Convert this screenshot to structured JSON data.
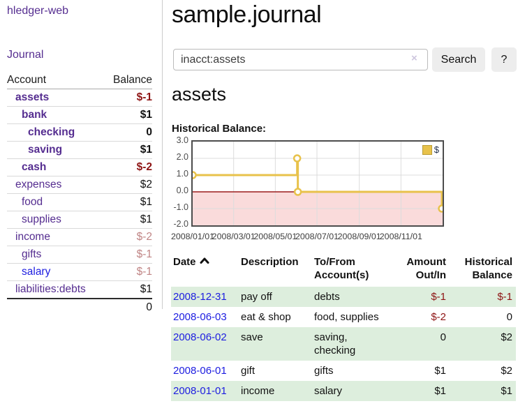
{
  "app": {
    "brand": "hledger-web",
    "nav": {
      "journal": "Journal"
    }
  },
  "sidebar": {
    "columns": {
      "account": "Account",
      "balance": "Balance"
    },
    "accounts": [
      {
        "name": "assets",
        "balance": "$-1",
        "indent": 1,
        "bold": true,
        "tone": "neg",
        "link": "purple"
      },
      {
        "name": "bank",
        "balance": "$1",
        "indent": 2,
        "bold": true,
        "tone": "normal",
        "link": "purple"
      },
      {
        "name": "checking",
        "balance": "0",
        "indent": 3,
        "bold": true,
        "tone": "normal",
        "link": "purple"
      },
      {
        "name": "saving",
        "balance": "$1",
        "indent": 3,
        "bold": true,
        "tone": "normal",
        "link": "purple"
      },
      {
        "name": "cash",
        "balance": "$-2",
        "indent": 2,
        "bold": true,
        "tone": "neg",
        "link": "purple"
      },
      {
        "name": "expenses",
        "balance": "$2",
        "indent": 1,
        "bold": false,
        "tone": "normal",
        "link": "purple"
      },
      {
        "name": "food",
        "balance": "$1",
        "indent": 2,
        "bold": false,
        "tone": "normal",
        "link": "purple"
      },
      {
        "name": "supplies",
        "balance": "$1",
        "indent": 2,
        "bold": false,
        "tone": "normal",
        "link": "purple"
      },
      {
        "name": "income",
        "balance": "$-2",
        "indent": 1,
        "bold": false,
        "tone": "faded",
        "link": "purple"
      },
      {
        "name": "gifts",
        "balance": "$-1",
        "indent": 2,
        "bold": false,
        "tone": "faded",
        "link": "purple"
      },
      {
        "name": "salary",
        "balance": "$-1",
        "indent": 2,
        "bold": false,
        "tone": "faded",
        "link": "blue"
      },
      {
        "name": "liabilities:debts",
        "balance": "$1",
        "indent": 1,
        "bold": false,
        "tone": "normal",
        "link": "purple"
      }
    ],
    "total": "0"
  },
  "main": {
    "title": "sample.journal",
    "search": {
      "value": "inacct:assets",
      "clear_glyph": "×",
      "search_label": "Search",
      "help_label": "?"
    },
    "account_heading": "assets",
    "chart_heading": "Historical Balance:"
  },
  "chart_data": {
    "type": "line",
    "step": true,
    "title": "Historical Balance",
    "series": [
      {
        "name": "$",
        "points": [
          [
            "2008-01-01",
            1
          ],
          [
            "2008-06-02",
            2
          ],
          [
            "2008-06-03",
            0
          ],
          [
            "2008-12-31",
            -1
          ]
        ]
      }
    ],
    "x_range": [
      "2008-01-01",
      "2009-01-01"
    ],
    "x_ticks": [
      "2008/01/01",
      "2008/03/01",
      "2008/05/01",
      "2008/07/01",
      "2008/09/01",
      "2008/11/01"
    ],
    "y_ticks": [
      3.0,
      2.0,
      1.0,
      0.0,
      -1.0,
      -2.0
    ],
    "ylim": [
      -2,
      3
    ],
    "grid": true,
    "negative_region_shaded": true,
    "legend": {
      "label": "$",
      "position": "top-right"
    }
  },
  "register": {
    "columns": [
      "Date",
      "Description",
      "To/From Account(s)",
      "Amount Out/In",
      "Historical Balance"
    ],
    "sort": {
      "column": "Date",
      "direction": "ascending"
    },
    "rows": [
      {
        "date": "2008-12-31",
        "description": "pay off",
        "accounts": "debts",
        "amount": "$-1",
        "amount_neg": true,
        "balance": "$-1",
        "balance_neg": true
      },
      {
        "date": "2008-06-03",
        "description": "eat & shop",
        "accounts": "food, supplies",
        "amount": "$-2",
        "amount_neg": true,
        "balance": "0",
        "balance_neg": false
      },
      {
        "date": "2008-06-02",
        "description": "save",
        "accounts": "saving, checking",
        "amount": "0",
        "amount_neg": false,
        "balance": "$2",
        "balance_neg": false
      },
      {
        "date": "2008-06-01",
        "description": "gift",
        "accounts": "gifts",
        "amount": "$1",
        "amount_neg": false,
        "balance": "$2",
        "balance_neg": false
      },
      {
        "date": "2008-01-01",
        "description": "income",
        "accounts": "salary",
        "amount": "$1",
        "amount_neg": false,
        "balance": "$1",
        "balance_neg": false
      }
    ]
  },
  "colors": {
    "link_purple": "#552d90",
    "link_blue": "#1d1de0",
    "negative_red": "#8e1414",
    "faded_red": "#c08585",
    "row_green": "#ddeedd",
    "chart_gold": "#e8c24b",
    "chart_pink": "#fadbdb",
    "zero_line_red": "#9b1c1c",
    "button_gray": "#ededed"
  }
}
